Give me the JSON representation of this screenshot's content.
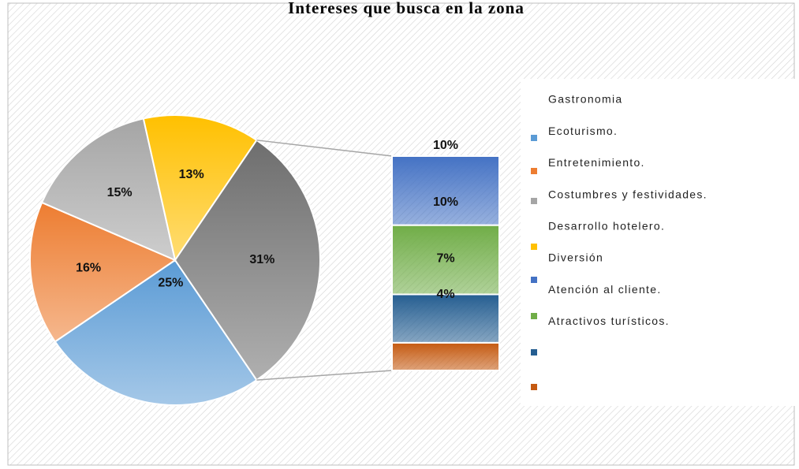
{
  "chart_data": {
    "type": "pie",
    "title": "Intereses que busca en la zona",
    "pie": {
      "values": [
        25,
        16,
        15,
        13,
        31
      ],
      "value_labels": [
        "25%",
        "16%",
        "15%",
        "13%",
        "31%"
      ],
      "colors": [
        "#5b9bd5",
        "#ed7d31",
        "#a5a5a5",
        "#ffc000",
        "#6e6e6e"
      ]
    },
    "bar": {
      "values": [
        10,
        10,
        7,
        4
      ],
      "value_labels": [
        "10%",
        "10%",
        "7%",
        "4%"
      ],
      "colors": [
        "#4472c4",
        "#70ad47",
        "#255e91",
        "#c55a11"
      ]
    },
    "legend": [
      {
        "name": "Gastronomia",
        "color": null
      },
      {
        "name": "Ecoturismo.",
        "color": "#5b9bd5"
      },
      {
        "name": "Entretenimiento.",
        "color": "#ed7d31"
      },
      {
        "name": "Costumbres y festividades.",
        "color": "#a5a5a5"
      },
      {
        "name": "Desarrollo hotelero.",
        "color": null
      },
      {
        "name": "Diversión",
        "color": "#ffc000"
      },
      {
        "name": "Atención al cliente.",
        "color": "#4472c4"
      },
      {
        "name": "Atractivos turísticos.",
        "color": "#70ad47"
      },
      {
        "name": null,
        "color": "#255e91"
      },
      {
        "name": null,
        "color": "#c55a11"
      }
    ]
  }
}
